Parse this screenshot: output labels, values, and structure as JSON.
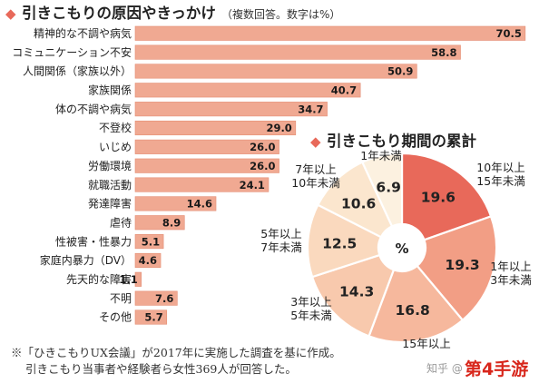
{
  "chart_data": [
    {
      "type": "bar",
      "orientation": "horizontal",
      "title_mark": "◆",
      "title": "引きこもりの原因やきっかけ",
      "subtitle": "（複数回答。数字は%）",
      "categories": [
        "精神的な不調や病気",
        "コミュニケーション不安",
        "人間関係（家族以外）",
        "家族関係",
        "体の不調や病気",
        "不登校",
        "いじめ",
        "労働環境",
        "就職活動",
        "発達障害",
        "虐待",
        "性被害・性暴力",
        "家庭内暴力（DV）",
        "先天的な障害",
        "不明",
        "その他"
      ],
      "values": [
        70.5,
        58.8,
        50.9,
        40.7,
        34.7,
        29.0,
        26.0,
        26.0,
        24.1,
        14.6,
        8.9,
        5.1,
        4.6,
        1.1,
        7.6,
        5.7
      ],
      "value_labels": [
        "70.5",
        "58.8",
        "50.9",
        "40.7",
        "34.7",
        "29.0",
        "26.0",
        "26.0",
        "24.1",
        "14.6",
        "8.9",
        "5.1",
        "4.6",
        "1.1",
        "7.6",
        "5.7"
      ],
      "xlim": [
        0,
        72
      ],
      "colors": {
        "bar": "#f0a992",
        "bar_edge": "#e48d73"
      }
    },
    {
      "type": "pie",
      "donut": true,
      "title_mark": "◆",
      "title": "引きこもり期間の累計",
      "center_label": "%",
      "slices": [
        {
          "value": 19.6,
          "label": "19.6",
          "category": "10年以上\n15年未満",
          "color": "#e8695a"
        },
        {
          "value": 19.3,
          "label": "19.3",
          "category": "1年以上\n3年未満",
          "color": "#f29e85"
        },
        {
          "value": 16.8,
          "label": "16.8",
          "category": "15年以上",
          "color": "#f6b89d"
        },
        {
          "value": 14.3,
          "label": "14.3",
          "category": "3年以上\n5年未満",
          "color": "#f8c9ad"
        },
        {
          "value": 12.5,
          "label": "12.5",
          "category": "5年以上\n7年未満",
          "color": "#fad9be"
        },
        {
          "value": 10.6,
          "label": "10.6",
          "category": "7年以上\n10年未満",
          "color": "#fbe6ce"
        },
        {
          "value": 6.9,
          "label": "6.9",
          "category": "1年未満",
          "color": "#fcf1e0"
        }
      ]
    }
  ],
  "footnote": {
    "line1": "※「ひきこもりUX会議」が2017年に実施した調査を基に作成。",
    "line2": "引きこもり当事者や経験者ら女性369人が回答した。"
  },
  "watermark": {
    "text": "知乎 @",
    "brand": "第4手游"
  }
}
